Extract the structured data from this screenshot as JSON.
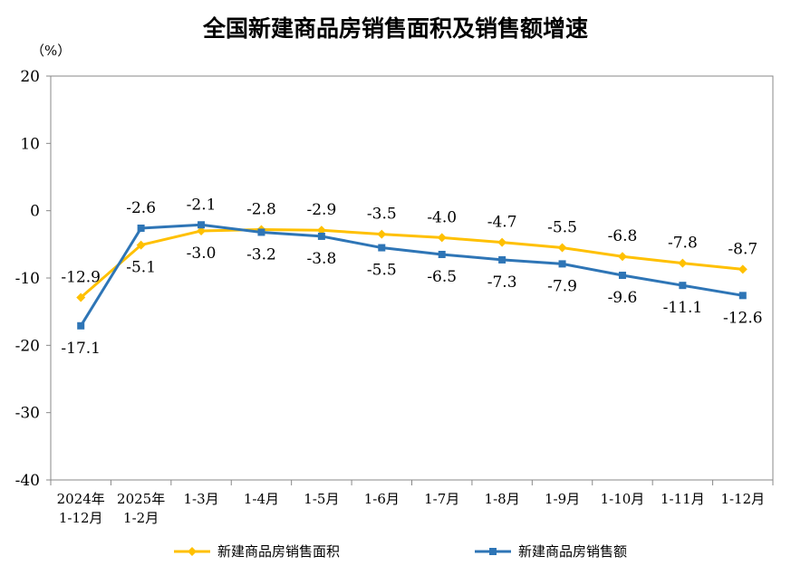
{
  "chart_data": {
    "type": "line",
    "title": "全国新建商品房销售面积及销售额增速",
    "ylabel": "（%）",
    "xlabel": "",
    "ylim": [
      -40,
      20
    ],
    "yticks": [
      20,
      10,
      0,
      -10,
      -20,
      -30,
      -40
    ],
    "categories": [
      [
        "2024年",
        "1-12月"
      ],
      [
        "2025年",
        "1-2月"
      ],
      [
        "1-3月"
      ],
      [
        "1-4月"
      ],
      [
        "1-5月"
      ],
      [
        "1-6月"
      ],
      [
        "1-7月"
      ],
      [
        "1-8月"
      ],
      [
        "1-9月"
      ],
      [
        "1-10月"
      ],
      [
        "1-11月"
      ],
      [
        "1-12月"
      ]
    ],
    "series": [
      {
        "name": "新建商品房销售面积",
        "color": "#FFC000",
        "marker": "diamond",
        "values": [
          -12.9,
          -5.1,
          -3.0,
          -2.8,
          -2.9,
          -3.5,
          -4.0,
          -4.7,
          -5.5,
          -6.8,
          -7.8,
          -8.7
        ],
        "labels": [
          "-12.9",
          "-5.1",
          "-3.0",
          "-2.8",
          "-2.9",
          "-3.5",
          "-4.0",
          "-4.7",
          "-5.5",
          "-6.8",
          "-7.8",
          "-8.7"
        ],
        "label_pos": [
          "above",
          "below",
          "below",
          "above",
          "above",
          "above",
          "above",
          "above",
          "above",
          "above",
          "above",
          "above"
        ]
      },
      {
        "name": "新建商品房销售额",
        "color": "#2E75B6",
        "marker": "square",
        "values": [
          -17.1,
          -2.6,
          -2.1,
          -3.2,
          -3.8,
          -5.5,
          -6.5,
          -7.3,
          -7.9,
          -9.6,
          -11.1,
          -12.6
        ],
        "labels": [
          "-17.1",
          "-2.6",
          "-2.1",
          "-3.2",
          "-3.8",
          "-5.5",
          "-6.5",
          "-7.3",
          "-7.9",
          "-9.6",
          "-11.1",
          "-12.6"
        ],
        "label_pos": [
          "below",
          "above",
          "above",
          "below",
          "below",
          "below",
          "below",
          "below",
          "below",
          "below",
          "below",
          "below"
        ]
      }
    ],
    "grid": false,
    "legend_position": "bottom"
  }
}
